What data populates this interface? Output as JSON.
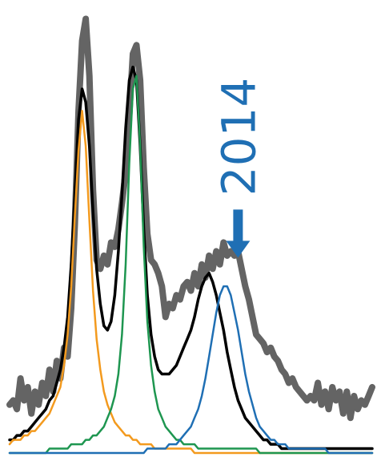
{
  "chart_data": {
    "type": "line",
    "title": "",
    "xlabel": "",
    "ylabel": "",
    "grid": false,
    "legend": "none",
    "xlim": [
      0,
      100
    ],
    "ylim": [
      0,
      100
    ],
    "annotations": [
      {
        "text": "2014",
        "x": 63,
        "y": 44,
        "orientation": "vertical",
        "arrow": "down",
        "color": "#1f6fb4"
      }
    ],
    "series": [
      {
        "role": "data",
        "color": "#646464",
        "x": [
          0,
          1,
          2,
          3,
          4,
          5,
          6,
          7,
          8,
          9,
          10,
          11,
          12,
          13,
          14,
          15,
          16,
          17,
          18,
          19,
          20,
          21,
          22,
          23,
          24,
          25,
          26,
          27,
          28,
          29,
          30,
          31,
          32,
          33,
          34,
          35,
          36,
          37,
          38,
          39,
          40,
          41,
          42,
          43,
          44,
          45,
          46,
          47,
          48,
          49,
          50,
          51,
          52,
          53,
          54,
          55,
          56,
          57,
          58,
          59,
          60,
          61,
          62,
          63,
          64,
          65,
          66,
          67,
          68,
          69,
          70,
          71,
          72,
          73,
          74,
          75,
          76,
          77,
          78,
          79,
          80,
          81,
          82,
          83,
          84,
          85,
          86,
          87,
          88,
          89,
          90,
          91,
          92,
          93,
          94,
          95,
          96,
          97,
          98,
          99,
          100
        ],
        "y": [
          11,
          12,
          10,
          17,
          12,
          15,
          9,
          14,
          11,
          16,
          13,
          19,
          14,
          21,
          17,
          24,
          22,
          33,
          52,
          78,
          94,
          99,
          86,
          60,
          44,
          42,
          45,
          43,
          48,
          47,
          51,
          57,
          64,
          77,
          91,
          93,
          85,
          65,
          50,
          44,
          43,
          41,
          38,
          31,
          34,
          33,
          36,
          35,
          38,
          39,
          37,
          41,
          38,
          43,
          40,
          45,
          42,
          46,
          43,
          48,
          45,
          46,
          45,
          46,
          42,
          38,
          35,
          31,
          27,
          26,
          25,
          23,
          24,
          22,
          21,
          19,
          18,
          16,
          17,
          15,
          14,
          13,
          12,
          13,
          12,
          16,
          11,
          14,
          10,
          15,
          12,
          14,
          9,
          14,
          8,
          13,
          10,
          12,
          11,
          13,
          15
        ]
      },
      {
        "role": "total fit",
        "color": "#000000",
        "x": [
          0,
          1,
          2,
          3,
          4,
          5,
          6,
          7,
          8,
          9,
          10,
          11,
          12,
          13,
          14,
          15,
          16,
          17,
          18,
          19,
          20,
          21,
          22,
          23,
          24,
          25,
          26,
          27,
          28,
          29,
          30,
          31,
          32,
          33,
          34,
          35,
          36,
          37,
          38,
          39,
          40,
          41,
          42,
          43,
          44,
          45,
          46,
          47,
          48,
          49,
          50,
          51,
          52,
          53,
          54,
          55,
          56,
          57,
          58,
          59,
          60,
          61,
          62,
          63,
          64,
          65,
          66,
          67,
          68,
          69,
          70,
          71,
          72,
          73,
          74,
          75,
          76,
          77,
          78,
          79,
          80,
          81,
          82,
          83,
          84,
          85,
          86,
          87,
          88,
          89,
          90,
          91,
          92,
          93,
          94,
          95,
          96,
          97,
          98,
          99,
          100
        ],
        "y": [
          3,
          3,
          4,
          4,
          5,
          5,
          6,
          7,
          8,
          9,
          10,
          12,
          13,
          16,
          19,
          24,
          31,
          43,
          59,
          76,
          83,
          80,
          70,
          55,
          42,
          34,
          29,
          28,
          30,
          36,
          46,
          59,
          74,
          85,
          88,
          85,
          70,
          51,
          36,
          27,
          22,
          19,
          18,
          18,
          18,
          19,
          20,
          22,
          24,
          26,
          28,
          31,
          35,
          38,
          40,
          41,
          39,
          36,
          32,
          28,
          23,
          19,
          15,
          12,
          10,
          8,
          7,
          6,
          5,
          4,
          3,
          3,
          2,
          2,
          2,
          1,
          1,
          1,
          1,
          1,
          1,
          1,
          1,
          1,
          1,
          1,
          1,
          1,
          1,
          1,
          1,
          1,
          1,
          1,
          1,
          1,
          1,
          1,
          1,
          1,
          1
        ]
      },
      {
        "role": "peak 1",
        "color": "#f39a1e",
        "x": [
          0,
          1,
          2,
          3,
          4,
          5,
          6,
          7,
          8,
          9,
          10,
          11,
          12,
          13,
          14,
          15,
          16,
          17,
          18,
          19,
          20,
          21,
          22,
          23,
          24,
          25,
          26,
          27,
          28,
          29,
          30,
          31,
          32,
          33,
          34,
          35,
          36,
          37,
          38,
          39,
          40,
          41,
          42,
          43,
          44,
          45,
          46,
          47,
          48,
          49,
          50,
          51,
          52,
          53,
          54,
          55,
          56,
          57,
          58,
          59,
          60,
          61,
          62,
          63,
          64,
          65,
          66,
          67,
          68,
          69,
          70,
          71,
          72,
          73,
          74,
          75,
          76,
          77,
          78,
          79,
          80,
          81,
          82,
          83,
          84,
          85,
          86,
          87,
          88,
          89,
          90,
          91,
          92,
          93,
          94,
          95,
          96,
          97,
          98,
          99,
          100
        ],
        "y": [
          2,
          3,
          3,
          3,
          4,
          4,
          5,
          5,
          6,
          7,
          8,
          9,
          11,
          13,
          15,
          20,
          27,
          38,
          54,
          69,
          78,
          70,
          53,
          37,
          26,
          19,
          14,
          11,
          9,
          7,
          6,
          5,
          4,
          4,
          3,
          3,
          2,
          2,
          2,
          2,
          1,
          1,
          1,
          1,
          1,
          1,
          1,
          1,
          1,
          1,
          1,
          0,
          0,
          0,
          0,
          0,
          0,
          0,
          0,
          0,
          0,
          0,
          0,
          0,
          0,
          0,
          0,
          0,
          0,
          0,
          0,
          0,
          0,
          0,
          0,
          0,
          0,
          0,
          0,
          0,
          0,
          0,
          0,
          0,
          0,
          0,
          0,
          0,
          0,
          0,
          0,
          0,
          0,
          0,
          0,
          0,
          0,
          0,
          0,
          0,
          0
        ]
      },
      {
        "role": "peak 2",
        "color": "#1e9650",
        "x": [
          0,
          1,
          2,
          3,
          4,
          5,
          6,
          7,
          8,
          9,
          10,
          11,
          12,
          13,
          14,
          15,
          16,
          17,
          18,
          19,
          20,
          21,
          22,
          23,
          24,
          25,
          26,
          27,
          28,
          29,
          30,
          31,
          32,
          33,
          34,
          35,
          36,
          37,
          38,
          39,
          40,
          41,
          42,
          43,
          44,
          45,
          46,
          47,
          48,
          49,
          50,
          51,
          52,
          53,
          54,
          55,
          56,
          57,
          58,
          59,
          60,
          61,
          62,
          63,
          64,
          65,
          66,
          67,
          68,
          69,
          70,
          71,
          72,
          73,
          74,
          75,
          76,
          77,
          78,
          79,
          80,
          81,
          82,
          83,
          84,
          85,
          86,
          87,
          88,
          89,
          90,
          91,
          92,
          93,
          94,
          95,
          96,
          97,
          98,
          99,
          100
        ],
        "y": [
          0,
          0,
          0,
          0,
          0,
          0,
          0,
          0,
          0,
          0,
          0,
          1,
          1,
          1,
          1,
          1,
          1,
          2,
          2,
          2,
          2,
          3,
          3,
          4,
          4,
          5,
          6,
          8,
          10,
          13,
          18,
          27,
          43,
          66,
          83,
          86,
          70,
          47,
          30,
          20,
          14,
          10,
          8,
          6,
          5,
          4,
          3,
          3,
          2,
          2,
          2,
          2,
          1,
          1,
          1,
          1,
          1,
          1,
          1,
          1,
          1,
          1,
          1,
          1,
          1,
          1,
          1,
          1,
          1,
          0,
          0,
          0,
          0,
          0,
          0,
          0,
          0,
          0,
          0,
          0,
          0,
          0,
          0,
          0,
          0,
          0,
          0,
          0,
          0,
          0,
          0,
          0,
          0,
          0,
          0,
          0,
          0,
          0,
          0,
          0,
          0
        ]
      },
      {
        "role": "peak 3",
        "color": "#1f6fb4",
        "x": [
          0,
          1,
          2,
          3,
          4,
          5,
          6,
          7,
          8,
          9,
          10,
          11,
          12,
          13,
          14,
          15,
          16,
          17,
          18,
          19,
          20,
          21,
          22,
          23,
          24,
          25,
          26,
          27,
          28,
          29,
          30,
          31,
          32,
          33,
          34,
          35,
          36,
          37,
          38,
          39,
          40,
          41,
          42,
          43,
          44,
          45,
          46,
          47,
          48,
          49,
          50,
          51,
          52,
          53,
          54,
          55,
          56,
          57,
          58,
          59,
          60,
          61,
          62,
          63,
          64,
          65,
          66,
          67,
          68,
          69,
          70,
          71,
          72,
          73,
          74,
          75,
          76,
          77,
          78,
          79,
          80,
          81,
          82,
          83,
          84,
          85,
          86,
          87,
          88,
          89,
          90,
          91,
          92,
          93,
          94,
          95,
          96,
          97,
          98,
          99,
          100
        ],
        "y": [
          0,
          0,
          0,
          0,
          0,
          0,
          0,
          0,
          0,
          0,
          0,
          0,
          0,
          0,
          0,
          0,
          0,
          0,
          0,
          0,
          0,
          0,
          0,
          0,
          0,
          0,
          0,
          0,
          0,
          0,
          0,
          0,
          0,
          0,
          0,
          0,
          0,
          0,
          1,
          1,
          1,
          1,
          1,
          1,
          2,
          2,
          2,
          3,
          4,
          5,
          6,
          8,
          10,
          13,
          17,
          22,
          27,
          32,
          36,
          38,
          38,
          36,
          32,
          28,
          23,
          18,
          14,
          11,
          8,
          6,
          5,
          4,
          3,
          3,
          2,
          2,
          2,
          1,
          1,
          1,
          1,
          1,
          1,
          1,
          1,
          1,
          1,
          1,
          0,
          0,
          0,
          0,
          0,
          0,
          0,
          0,
          0,
          0,
          0,
          0,
          0
        ]
      }
    ]
  }
}
